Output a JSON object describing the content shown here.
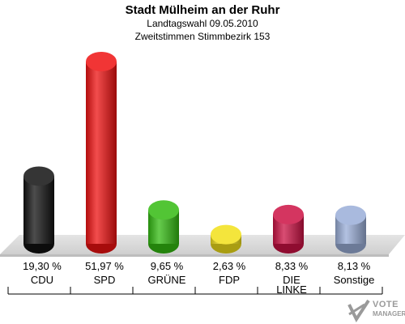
{
  "header": {
    "title": "Stadt Mülheim an der Ruhr",
    "subtitle": "Landtagswahl 09.05.2010",
    "subtitle2": "Zweitstimmen Stimmbezirk 153"
  },
  "logo": {
    "line1": "VOTE",
    "line2": "MANAGER"
  },
  "colors": {
    "CDU": "#111111",
    "SPD": "#ee1111",
    "GRUENE": "#33bb11",
    "FDP": "#f2e01a",
    "LINKE": "#cc1144",
    "Sonstige": "#9aaed8",
    "floor": "#cfcfcf"
  },
  "chart_data": {
    "type": "bar",
    "title": "Stadt Mülheim an der Ruhr",
    "categories": [
      "CDU",
      "SPD",
      "GRÜNE",
      "FDP",
      "DIE LINKE",
      "Sonstige"
    ],
    "category_lines": [
      [
        "CDU"
      ],
      [
        "SPD"
      ],
      [
        "GRÜNE"
      ],
      [
        "FDP"
      ],
      [
        "DIE",
        "LINKE"
      ],
      [
        "Sonstige"
      ]
    ],
    "values": [
      19.3,
      51.97,
      9.65,
      2.63,
      8.33,
      8.13
    ],
    "value_labels": [
      "19,30 %",
      "51,97 %",
      "9,65 %",
      "2,63 %",
      "8,33 %",
      "8,13 %"
    ],
    "series_colors": [
      "#111111",
      "#ee1111",
      "#33bb11",
      "#f2e01a",
      "#cc1144",
      "#9aaed8"
    ],
    "ylim": [
      0,
      51.97
    ],
    "grid": false,
    "legend": "none"
  }
}
